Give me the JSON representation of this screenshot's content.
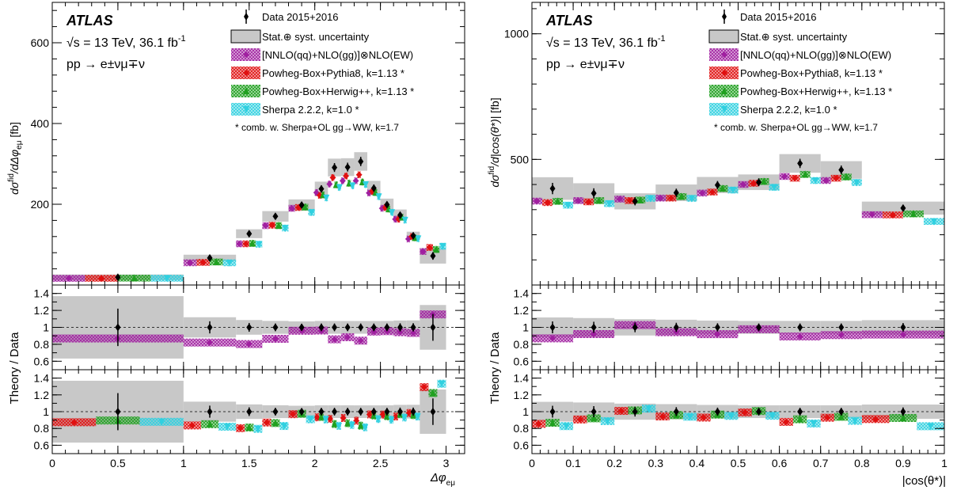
{
  "colors": {
    "data": "#000000",
    "uncertainty": "#c8c8c8",
    "nnlo": "#a020a0",
    "powheg_pythia": "#e01010",
    "powheg_herwig": "#20a020",
    "sherpa": "#30d0e0"
  },
  "legend": {
    "experiment": "ATLAS",
    "energy": "√s = 13 TeV, 36.1 fb",
    "energy_sup": "-1",
    "process": "pp → e±νμ∓ν",
    "entries": [
      {
        "key": "data",
        "label": "Data 2015+2016"
      },
      {
        "key": "uncertainty",
        "label": "Stat.⊕ syst. uncertainty"
      },
      {
        "key": "nnlo",
        "label": "[NNLO(qq)+NLO(gg)]⊗NLO(EW)"
      },
      {
        "key": "powheg_pythia",
        "label": "Powheg-Box+Pythia8, k=1.13 *"
      },
      {
        "key": "powheg_herwig",
        "label": "Powheg-Box+Herwig++, k=1.13 *"
      },
      {
        "key": "sherpa",
        "label": "Sherpa 2.2.2, k=1.0 *"
      }
    ],
    "footnote": "* comb. w. Sherpa+OL gg→WW, k=1.7"
  },
  "chart_data": [
    {
      "type": "line",
      "title": "",
      "xlabel": "Δφeμ",
      "ylabel": "dσfid/dΔφeμ [fb]",
      "ratio_ylabel": "Theory / Data",
      "xlim": [
        0,
        3.1416
      ],
      "xticks": [
        0,
        0.5,
        1,
        1.5,
        2,
        2.5,
        3
      ],
      "xtick_labels": [
        "0",
        "0.5",
        "1",
        "1.5",
        "2",
        "2.5",
        "3"
      ],
      "ylim": [
        0,
        700
      ],
      "yticks": [
        200,
        400,
        600
      ],
      "ytick_labels": [
        "200",
        "400",
        "600"
      ],
      "ratio_ylim": [
        0.5,
        1.5
      ],
      "ratio_yticks": [
        0.6,
        0.8,
        1,
        1.2,
        1.4
      ],
      "ratio_ytick_labels": [
        "0.6",
        "0.8",
        "1",
        "1.2",
        "1.4"
      ],
      "bin_edges": [
        0,
        1.0,
        1.4,
        1.6,
        1.8,
        2.0,
        2.1,
        2.2,
        2.3,
        2.4,
        2.5,
        2.6,
        2.7,
        2.8,
        3.0,
        3.1416
      ],
      "data": [
        19,
        67,
        127,
        170,
        198,
        238,
        291,
        292,
        306,
        240,
        199,
        173,
        122,
        72
      ],
      "uncertainty": [
        7,
        8,
        11,
        13,
        14,
        18,
        22,
        22,
        23,
        18,
        15,
        14,
        10,
        19
      ],
      "series": [
        {
          "key": "nnlo",
          "values": [
            16.5,
            55,
            102,
            147,
            190,
            229,
            250,
            258,
            258,
            228,
            190,
            163,
            114,
            83
          ]
        },
        {
          "key": "powheg_pythia",
          "values": [
            16.6,
            56,
            102,
            148,
            192,
            222,
            266,
            270,
            273,
            232,
            192,
            163,
            120,
            93
          ]
        },
        {
          "key": "powheg_herwig",
          "values": [
            17,
            57,
            103,
            147,
            193,
            223,
            248,
            252,
            255,
            229,
            188,
            168,
            117,
            88
          ]
        },
        {
          "key": "sherpa",
          "values": [
            16.7,
            55,
            101,
            141,
            180,
            216,
            242,
            246,
            249,
            219,
            180,
            161,
            115,
            96
          ]
        }
      ],
      "ratio_panels": [
        [
          "nnlo"
        ],
        [
          "powheg_pythia",
          "powheg_herwig",
          "sherpa"
        ]
      ]
    },
    {
      "type": "line",
      "title": "",
      "xlabel": "|cos(θ*)|",
      "ylabel": "dσfid/d|cos(θ*)| [fb]",
      "ratio_ylabel": "Theory / Data",
      "xlim": [
        0,
        1
      ],
      "xticks": [
        0,
        0.1,
        0.2,
        0.3,
        0.4,
        0.5,
        0.6,
        0.7,
        0.8,
        0.9,
        1
      ],
      "xtick_labels": [
        "0",
        "0.1",
        "0.2",
        "0.3",
        "0.4",
        "0.5",
        "0.6",
        "0.7",
        "0.8",
        "0.9",
        "1"
      ],
      "ylim": [
        0,
        1125
      ],
      "yticks": [
        500,
        1000
      ],
      "ytick_labels": [
        "500",
        "1000"
      ],
      "ratio_ylim": [
        0.5,
        1.5
      ],
      "ratio_yticks": [
        0.6,
        0.8,
        1,
        1.2,
        1.4
      ],
      "ratio_ytick_labels": [
        "0.6",
        "0.8",
        "1",
        "1.2",
        "1.4"
      ],
      "bin_edges": [
        0,
        0.1,
        0.2,
        0.3,
        0.4,
        0.5,
        0.6,
        0.7,
        0.8,
        1.0
      ],
      "data": [
        384,
        365,
        333,
        367,
        398,
        409,
        484,
        458,
        306
      ],
      "uncertainty": [
        45,
        40,
        32,
        33,
        32,
        31,
        37,
        35,
        26
      ],
      "series": [
        {
          "key": "nnlo",
          "values": [
            334,
            336,
            342,
            346,
            366,
            400,
            432,
            416,
            280
          ]
        },
        {
          "key": "powheg_pythia",
          "values": [
            328,
            331,
            336,
            346,
            370,
            405,
            425,
            425,
            279
          ]
        },
        {
          "key": "powheg_herwig",
          "values": [
            333,
            336,
            338,
            352,
            384,
            412,
            440,
            430,
            283
          ]
        },
        {
          "key": "sherpa",
          "values": [
            318,
            324,
            345,
            345,
            378,
            389,
            416,
            408,
            253
          ]
        }
      ],
      "ratio_panels": [
        [
          "nnlo"
        ],
        [
          "powheg_pythia",
          "powheg_herwig",
          "sherpa"
        ]
      ]
    }
  ]
}
